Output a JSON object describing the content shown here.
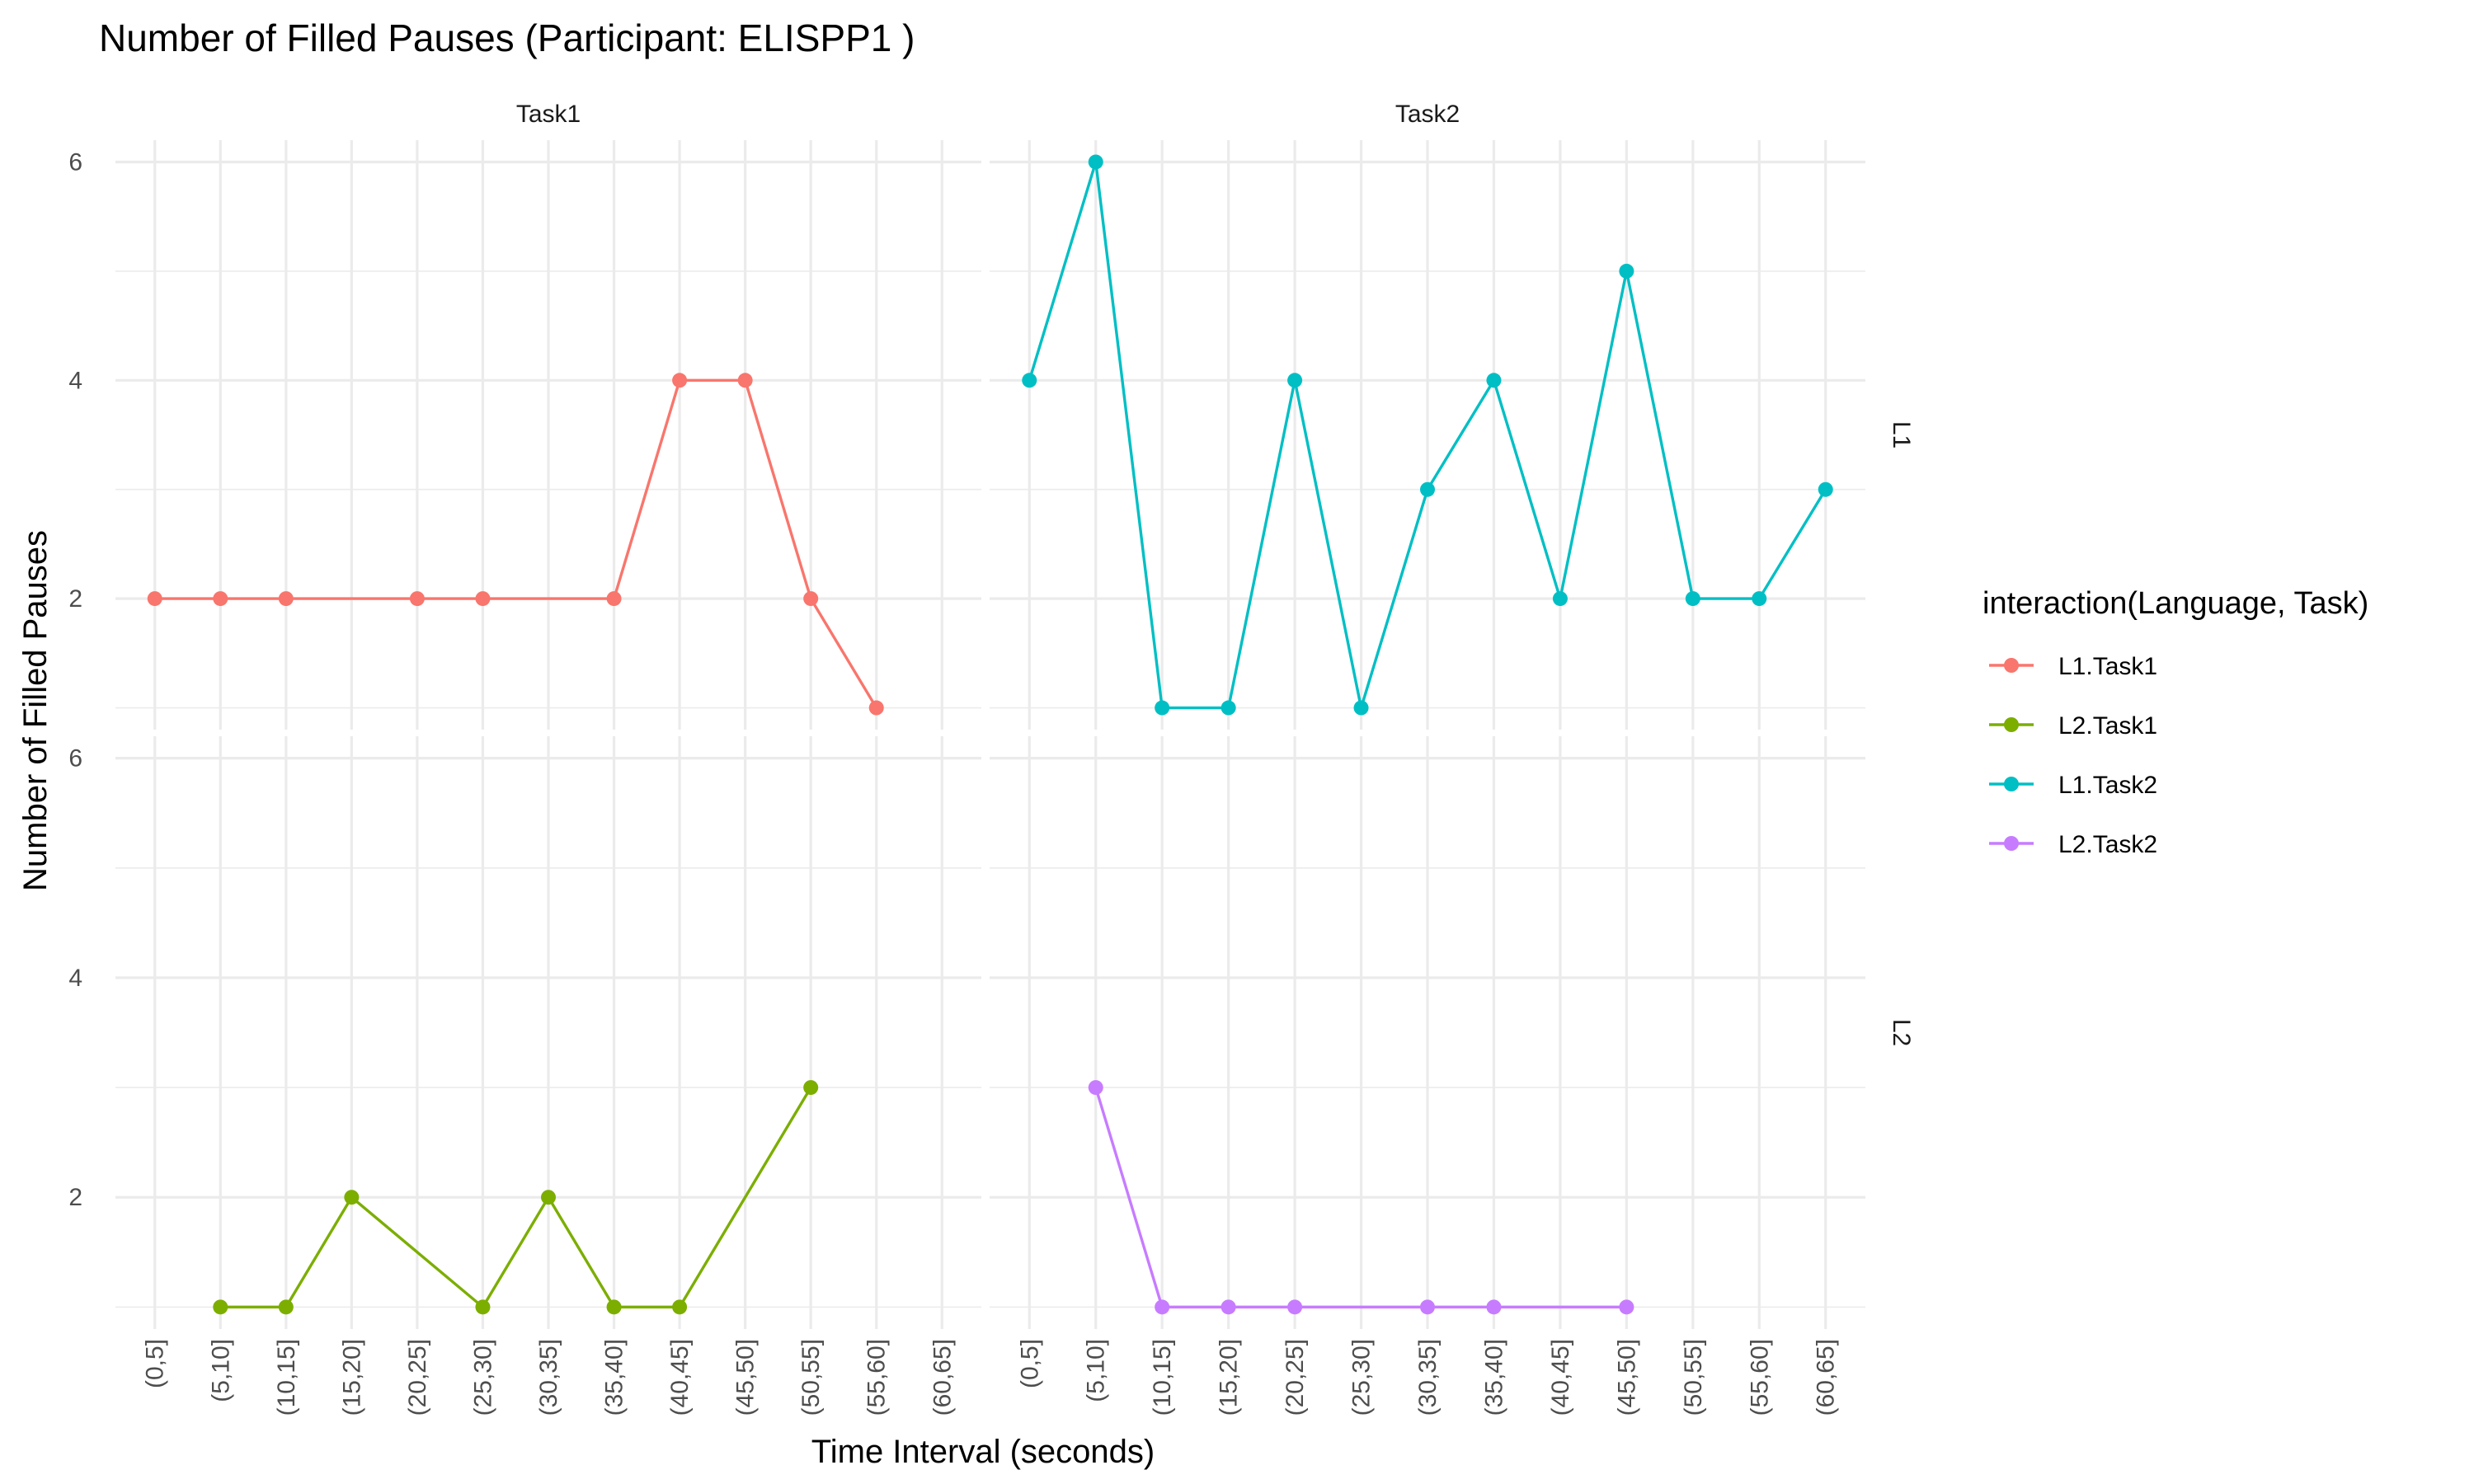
{
  "chart_data": {
    "type": "line",
    "title": "Number of Filled Pauses (Participant: ELISPP1 )",
    "xlabel": "Time Interval (seconds)",
    "ylabel": "Number of Filled Pauses",
    "categories": [
      "(0,5]",
      "(5,10]",
      "(10,15]",
      "(15,20]",
      "(20,25]",
      "(25,30]",
      "(30,35]",
      "(35,40]",
      "(40,45]",
      "(45,50]",
      "(50,55]",
      "(55,60]",
      "(60,65]"
    ],
    "facet_columns": [
      "Task1",
      "Task2"
    ],
    "facet_rows": [
      "L1",
      "L2"
    ],
    "ylim": [
      0.8,
      6.2
    ],
    "y_ticks": [
      2,
      4,
      6
    ],
    "grid": true,
    "legend": {
      "title": "interaction(Language, Task)",
      "position": "right",
      "entries": [
        "L1.Task1",
        "L2.Task1",
        "L1.Task2",
        "L2.Task2"
      ]
    },
    "series": [
      {
        "name": "L1.Task1",
        "language": "L1",
        "task": "Task1",
        "color": "#F8766D",
        "points": [
          {
            "x": "(0,5]",
            "y": 2
          },
          {
            "x": "(5,10]",
            "y": 2
          },
          {
            "x": "(10,15]",
            "y": 2
          },
          {
            "x": "(20,25]",
            "y": 2
          },
          {
            "x": "(25,30]",
            "y": 2
          },
          {
            "x": "(35,40]",
            "y": 2
          },
          {
            "x": "(40,45]",
            "y": 4
          },
          {
            "x": "(45,50]",
            "y": 4
          },
          {
            "x": "(50,55]",
            "y": 2
          },
          {
            "x": "(55,60]",
            "y": 1
          }
        ]
      },
      {
        "name": "L2.Task1",
        "language": "L2",
        "task": "Task1",
        "color": "#7CAE00",
        "points": [
          {
            "x": "(5,10]",
            "y": 1
          },
          {
            "x": "(10,15]",
            "y": 1
          },
          {
            "x": "(15,20]",
            "y": 2
          },
          {
            "x": "(25,30]",
            "y": 1
          },
          {
            "x": "(30,35]",
            "y": 2
          },
          {
            "x": "(35,40]",
            "y": 1
          },
          {
            "x": "(40,45]",
            "y": 1
          },
          {
            "x": "(50,55]",
            "y": 3
          }
        ]
      },
      {
        "name": "L1.Task2",
        "language": "L1",
        "task": "Task2",
        "color": "#00BFC4",
        "points": [
          {
            "x": "(0,5]",
            "y": 4
          },
          {
            "x": "(5,10]",
            "y": 6
          },
          {
            "x": "(10,15]",
            "y": 1
          },
          {
            "x": "(15,20]",
            "y": 1
          },
          {
            "x": "(20,25]",
            "y": 4
          },
          {
            "x": "(25,30]",
            "y": 1
          },
          {
            "x": "(30,35]",
            "y": 3
          },
          {
            "x": "(35,40]",
            "y": 4
          },
          {
            "x": "(40,45]",
            "y": 2
          },
          {
            "x": "(45,50]",
            "y": 5
          },
          {
            "x": "(50,55]",
            "y": 2
          },
          {
            "x": "(55,60]",
            "y": 2
          },
          {
            "x": "(60,65]",
            "y": 3
          }
        ]
      },
      {
        "name": "L2.Task2",
        "language": "L2",
        "task": "Task2",
        "color": "#C77CFF",
        "points": [
          {
            "x": "(5,10]",
            "y": 3
          },
          {
            "x": "(10,15]",
            "y": 1
          },
          {
            "x": "(15,20]",
            "y": 1
          },
          {
            "x": "(20,25]",
            "y": 1
          },
          {
            "x": "(30,35]",
            "y": 1
          },
          {
            "x": "(35,40]",
            "y": 1
          },
          {
            "x": "(45,50]",
            "y": 1
          }
        ]
      }
    ]
  }
}
